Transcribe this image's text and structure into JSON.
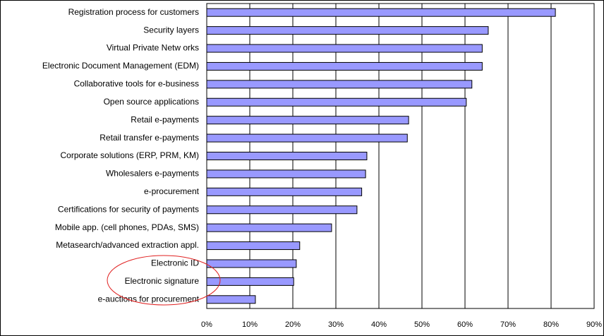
{
  "chart_data": {
    "type": "bar",
    "orientation": "horizontal",
    "categories": [
      "Registration process for customers",
      "Security layers",
      "Virtual Private Netw orks",
      "Electronic Document Management (EDM)",
      "Collaborative tools for e-business",
      "Open source applications",
      "Retail e-payments",
      "Retail transfer  e-payments",
      "Corporate solutions (ERP, PRM, KM)",
      "Wholesalers e-payments",
      "e-procurement",
      "Certifications for security of payments",
      "Mobile app. (cell phones, PDAs, SMS)",
      "Metasearch/advanced extraction appl.",
      "Electronic ID",
      "Electronic signature",
      "e-auctions for procurement"
    ],
    "values": [
      81,
      65.4,
      64,
      64,
      61.6,
      60.3,
      46.9,
      46.6,
      37.2,
      36.9,
      36,
      34.9,
      29,
      21.6,
      20.8,
      20.2,
      11.3
    ],
    "value_labels": null,
    "color": "#9999ff",
    "xlim": [
      0,
      90
    ],
    "xticks": [
      {
        "value": 0,
        "label": "0%"
      },
      {
        "value": 10,
        "label": "10%"
      },
      {
        "value": 20,
        "label": "20%"
      },
      {
        "value": 30,
        "label": "30%"
      },
      {
        "value": 40,
        "label": "40%"
      },
      {
        "value": 50,
        "label": "50%"
      },
      {
        "value": 60,
        "label": "60%"
      },
      {
        "value": 70,
        "label": "70%"
      },
      {
        "value": 80,
        "label": "80%"
      },
      {
        "value": 90,
        "label": "90%"
      }
    ],
    "grid": true
  }
}
